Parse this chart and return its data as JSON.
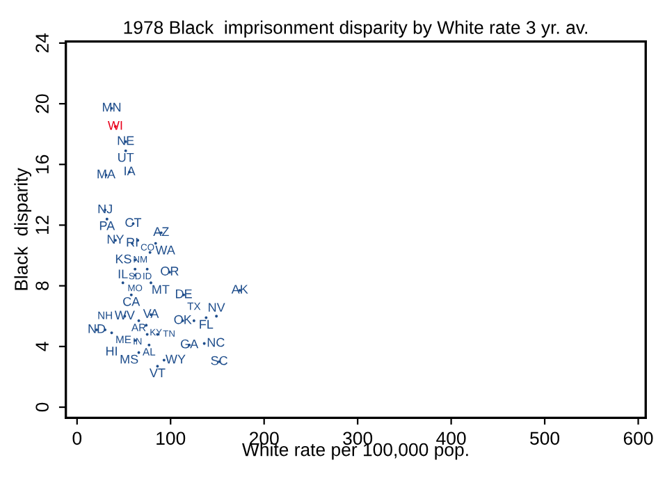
{
  "chart_data": {
    "type": "scatter",
    "title": "1978 Black  imprisonment disparity by White rate 3 yr. av.",
    "xlabel": "White rate per 100,000 pop.",
    "ylabel": "Black  disparity",
    "xlim": [
      -12,
      608
    ],
    "ylim": [
      -0.7,
      24.1
    ],
    "xticks": [
      0,
      100,
      200,
      300,
      400,
      500,
      600
    ],
    "yticks": [
      0,
      4,
      8,
      12,
      16,
      20,
      24
    ],
    "grid": false,
    "marker": "circle",
    "series": [
      {
        "x": [
          37,
          41,
          52,
          52,
          31,
          56,
          30,
          32,
          60,
          90,
          41,
          59,
          65,
          84,
          78,
          62,
          62,
          75,
          99,
          62,
          49,
          79,
          58,
          114,
          174,
          51,
          79,
          66,
          74,
          113,
          125,
          138,
          149,
          75,
          86,
          62,
          77,
          120,
          136,
          66,
          93,
          86,
          152,
          21,
          30,
          37
        ],
        "values": [
          19.7,
          18.5,
          17.5,
          16.9,
          15.3,
          15.5,
          13.0,
          12.4,
          12.1,
          11.5,
          11.0,
          10.8,
          11.0,
          10.8,
          10.2,
          9.7,
          9.1,
          9.1,
          8.9,
          8.7,
          8.2,
          8.2,
          7.4,
          7.4,
          7.7,
          6.0,
          6.1,
          5.7,
          5.4,
          5.7,
          5.7,
          5.9,
          6.0,
          4.8,
          4.8,
          4.4,
          4.1,
          4.1,
          4.2,
          3.6,
          3.1,
          2.7,
          3.0,
          5.1,
          5.1,
          4.9
        ],
        "value_labels": [
          "MN",
          "WI",
          "NE",
          "UT",
          "MA",
          "IA",
          "NJ",
          "PA",
          "CT",
          "AZ",
          "NY",
          "RI",
          "CO",
          "WA",
          "NM",
          "KS",
          "SD",
          "ID",
          "OR",
          "MO",
          "IL",
          "MT",
          "CA",
          "DE",
          "AK",
          "WV",
          "VA",
          "AR",
          "KY",
          "OK",
          "TX",
          "FL",
          "NV",
          "IN",
          "TN",
          "ME",
          "AL",
          "GA",
          "NC",
          "MS",
          "WY",
          "VT",
          "SC",
          "ND",
          "NH",
          "HI"
        ],
        "colors": [
          "#1f4e8c",
          "#e8001c",
          "#1f4e8c",
          "#1f4e8c",
          "#1f4e8c",
          "#1f4e8c",
          "#1f4e8c",
          "#1f4e8c",
          "#1f4e8c",
          "#1f4e8c",
          "#1f4e8c",
          "#1f4e8c",
          "#1f4e8c",
          "#1f4e8c",
          "#1f4e8c",
          "#1f4e8c",
          "#1f4e8c",
          "#1f4e8c",
          "#1f4e8c",
          "#1f4e8c",
          "#1f4e8c",
          "#1f4e8c",
          "#1f4e8c",
          "#1f4e8c",
          "#1f4e8c",
          "#1f4e8c",
          "#1f4e8c",
          "#1f4e8c",
          "#1f4e8c",
          "#1f4e8c",
          "#1f4e8c",
          "#1f4e8c",
          "#1f4e8c",
          "#1f4e8c",
          "#1f4e8c",
          "#1f4e8c",
          "#1f4e8c",
          "#1f4e8c",
          "#1f4e8c",
          "#1f4e8c",
          "#1f4e8c",
          "#1f4e8c",
          "#1f4e8c",
          "#1f4e8c",
          "#1f4e8c",
          "#1f4e8c"
        ]
      }
    ]
  }
}
